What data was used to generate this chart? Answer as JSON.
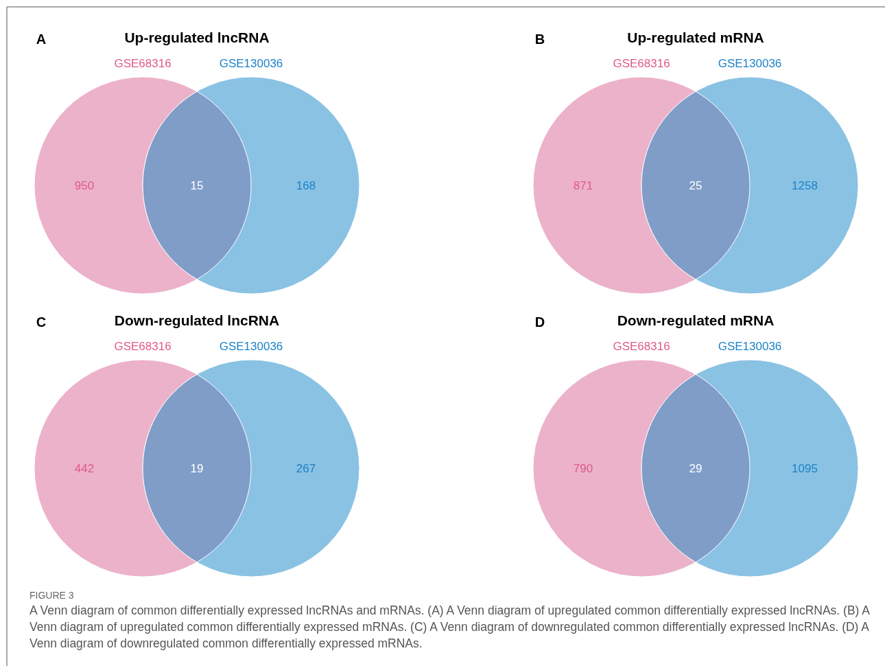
{
  "chart_data": [
    {
      "type": "other",
      "title": "Up-regulated lncRNA",
      "categories": [
        null,
        null,
        null
      ],
      "values": [
        950,
        15,
        168
      ],
      "colors": [
        "#ecb2ca",
        "#809dc8",
        "#8ac2e3"
      ],
      "data_labels": true,
      "annotations": [
        "A",
        "GSE68316",
        "GSE130036"
      ]
    },
    {
      "type": "other",
      "title": "Up-regulated mRNA",
      "categories": [
        null,
        null,
        null
      ],
      "values": [
        871,
        25,
        1258
      ],
      "colors": [
        "#ecb2ca",
        "#809dc8",
        "#8ac2e3"
      ],
      "data_labels": true,
      "annotations": [
        "B",
        "GSE68316",
        "GSE130036"
      ]
    },
    {
      "type": "other",
      "title": "Down-regulated lncRNA",
      "categories": [
        null,
        null,
        null
      ],
      "values": [
        442,
        19,
        267
      ],
      "colors": [
        "#ecb2ca",
        "#809dc8",
        "#8ac2e3"
      ],
      "data_labels": true,
      "annotations": [
        "C",
        "GSE68316",
        "GSE130036"
      ]
    },
    {
      "type": "other",
      "title": "Down-regulated mRNA",
      "categories": [
        null,
        null,
        null
      ],
      "values": [
        790,
        29,
        1095
      ],
      "colors": [
        "#ecb2ca",
        "#809dc8",
        "#8ac2e3"
      ],
      "data_labels": true,
      "annotations": [
        "D",
        "GSE68316",
        "GSE130036",
        "FIGURE 3",
        "A Venn diagram of common differentially expressed lncRNAs and mRNAs. (A) A Venn diagram of upregulated common differentially expressed lncRNAs. (B) A Venn diagram of upregulated common differentially expressed mRNAs. (C) A Venn diagram of downregulated common differentially expressed lncRNAs. (D) A Venn diagram of downregulated common differentially expressed mRNAs."
      ]
    }
  ]
}
